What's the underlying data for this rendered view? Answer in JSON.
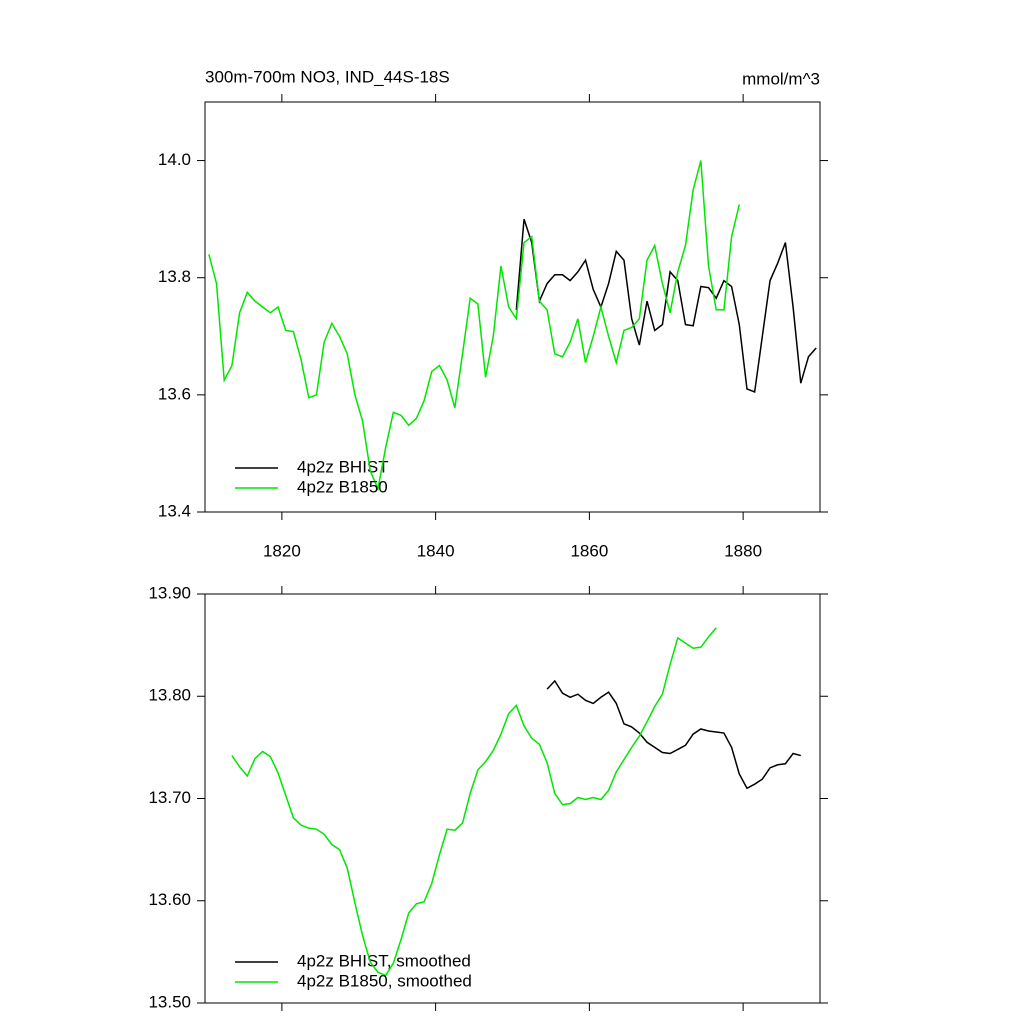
{
  "chart_data": [
    {
      "type": "line",
      "title": "300m-700m NO3, IND_44S-18S",
      "unit_label": "mmol/m^3",
      "x": [
        1810.5,
        1811.5,
        1812.5,
        1813.5,
        1814.5,
        1815.5,
        1816.5,
        1817.5,
        1818.5,
        1819.5,
        1820.5,
        1821.5,
        1822.5,
        1823.5,
        1824.5,
        1825.5,
        1826.5,
        1827.5,
        1828.5,
        1829.5,
        1830.5,
        1831.5,
        1832.5,
        1833.5,
        1834.5,
        1835.5,
        1836.5,
        1837.5,
        1838.5,
        1839.5,
        1840.5,
        1841.5,
        1842.5,
        1843.5,
        1844.5,
        1845.5,
        1846.5,
        1847.5,
        1848.5,
        1849.5,
        1850.5,
        1851.5,
        1852.5,
        1853.5,
        1854.5,
        1855.5,
        1856.5,
        1857.5,
        1858.5,
        1859.5,
        1860.5,
        1861.5,
        1862.5,
        1863.5,
        1864.5,
        1865.5,
        1866.5,
        1867.5,
        1868.5,
        1869.5,
        1870.5,
        1871.5,
        1872.5,
        1873.5,
        1874.5,
        1875.5,
        1876.5,
        1877.5,
        1878.5,
        1879.5,
        1880.5,
        1881.5,
        1882.5,
        1883.5,
        1884.5,
        1885.5,
        1886.5,
        1887.5,
        1888.5,
        1889.5
      ],
      "series": [
        {
          "name": "4p2z BHIST",
          "color": "#000000",
          "values": [
            null,
            null,
            null,
            null,
            null,
            null,
            null,
            null,
            null,
            null,
            null,
            null,
            null,
            null,
            null,
            null,
            null,
            null,
            null,
            null,
            null,
            null,
            null,
            null,
            null,
            null,
            null,
            null,
            null,
            null,
            null,
            null,
            null,
            null,
            null,
            null,
            null,
            null,
            null,
            null,
            13.745,
            13.9,
            13.86,
            13.76,
            13.79,
            13.805,
            13.805,
            13.795,
            13.81,
            13.83,
            13.78,
            13.75,
            13.79,
            13.845,
            13.83,
            13.73,
            13.685,
            13.76,
            13.71,
            13.72,
            13.81,
            13.795,
            13.72,
            13.718,
            13.785,
            13.783,
            13.765,
            13.795,
            13.785,
            13.72,
            13.61,
            13.605,
            13.7,
            13.795,
            13.825,
            13.86,
            13.75,
            13.62,
            13.665,
            13.68
          ]
        },
        {
          "name": "4p2z B1850",
          "color": "#00e600",
          "values": [
            13.84,
            13.79,
            13.625,
            13.65,
            13.74,
            13.775,
            13.76,
            13.75,
            13.74,
            13.75,
            13.71,
            13.708,
            13.66,
            13.595,
            13.6,
            13.69,
            13.722,
            13.7,
            13.67,
            13.6,
            13.555,
            13.47,
            13.44,
            13.51,
            13.57,
            13.565,
            13.548,
            13.56,
            13.59,
            13.64,
            13.65,
            13.625,
            13.578,
            13.67,
            13.765,
            13.755,
            13.63,
            13.7,
            13.82,
            13.75,
            13.73,
            13.86,
            13.87,
            13.76,
            13.745,
            13.67,
            13.665,
            13.69,
            13.73,
            13.655,
            13.7,
            13.75,
            13.7,
            13.655,
            13.71,
            13.715,
            13.73,
            13.83,
            13.855,
            13.79,
            13.74,
            13.81,
            13.855,
            13.95,
            14.0,
            13.82,
            13.745,
            13.745,
            13.87,
            13.925,
            null,
            null,
            null,
            null,
            null,
            null,
            null,
            null,
            null,
            null
          ]
        }
      ],
      "xlim": [
        1810,
        1890
      ],
      "xticks": [
        1820,
        1840,
        1860,
        1880
      ],
      "ylim": [
        13.4,
        14.1
      ],
      "yticks": [
        13.4,
        13.6,
        13.8,
        {
          "value": 14.0,
          "label": "14.0"
        }
      ]
    },
    {
      "type": "line",
      "x": [
        1813.5,
        1814.5,
        1815.5,
        1816.5,
        1817.5,
        1818.5,
        1819.5,
        1820.5,
        1821.5,
        1822.5,
        1823.5,
        1824.5,
        1825.5,
        1826.5,
        1827.5,
        1828.5,
        1829.5,
        1830.5,
        1831.5,
        1832.5,
        1833.5,
        1834.5,
        1835.5,
        1836.5,
        1837.5,
        1838.5,
        1839.5,
        1840.5,
        1841.5,
        1842.5,
        1843.5,
        1844.5,
        1845.5,
        1846.5,
        1847.5,
        1848.5,
        1849.5,
        1850.5,
        1851.5,
        1852.5,
        1853.5,
        1854.5,
        1855.5,
        1856.5,
        1857.5,
        1858.5,
        1859.5,
        1860.5,
        1861.5,
        1862.5,
        1863.5,
        1864.5,
        1865.5,
        1866.5,
        1867.5,
        1868.5,
        1869.5,
        1870.5,
        1871.5,
        1872.5,
        1873.5,
        1874.5,
        1875.5,
        1876.5,
        1877.5,
        1878.5,
        1879.5,
        1880.5,
        1881.5,
        1882.5,
        1883.5,
        1884.5,
        1885.5,
        1886.5,
        1887.5
      ],
      "series": [
        {
          "name": "4p2z BHIST, smoothed",
          "color": "#000000",
          "values": [
            null,
            null,
            null,
            null,
            null,
            null,
            null,
            null,
            null,
            null,
            null,
            null,
            null,
            null,
            null,
            null,
            null,
            null,
            null,
            null,
            null,
            null,
            null,
            null,
            null,
            null,
            null,
            null,
            null,
            null,
            null,
            null,
            null,
            null,
            null,
            null,
            null,
            null,
            null,
            null,
            null,
            13.807,
            13.815,
            13.803,
            13.799,
            13.802,
            13.796,
            13.793,
            13.799,
            13.804,
            13.793,
            13.773,
            13.77,
            13.764,
            13.755,
            13.75,
            13.745,
            13.744,
            13.748,
            13.752,
            13.763,
            13.768,
            13.766,
            13.765,
            13.764,
            13.75,
            13.724,
            13.71,
            13.714,
            13.719,
            13.73,
            13.733,
            13.734,
            13.744,
            13.742
          ]
        },
        {
          "name": "4p2z B1850, smoothed",
          "color": "#00e600",
          "values": [
            13.742,
            13.731,
            13.722,
            13.739,
            13.746,
            13.741,
            13.725,
            13.703,
            13.681,
            13.674,
            13.671,
            13.67,
            13.665,
            13.655,
            13.65,
            13.632,
            13.598,
            13.566,
            13.54,
            13.53,
            13.527,
            13.539,
            13.562,
            13.588,
            13.597,
            13.599,
            13.617,
            13.645,
            13.67,
            13.669,
            13.676,
            13.705,
            13.728,
            13.736,
            13.747,
            13.763,
            13.783,
            13.791,
            13.771,
            13.759,
            13.753,
            13.735,
            13.705,
            13.694,
            13.695,
            13.701,
            13.699,
            13.701,
            13.699,
            13.708,
            13.726,
            13.738,
            13.75,
            13.761,
            13.775,
            13.79,
            13.802,
            13.831,
            13.857,
            13.852,
            13.847,
            13.848,
            13.858,
            13.867,
            null,
            null,
            null,
            null,
            null,
            null,
            null,
            null,
            null,
            null,
            null
          ]
        }
      ],
      "xlim": [
        1810,
        1890
      ],
      "xticks": [
        1820,
        1840,
        1860,
        1880
      ],
      "xtick_labels": false,
      "ylim": [
        13.5,
        13.9
      ],
      "yticks": [
        {
          "value": 13.5,
          "label": "13.50"
        },
        {
          "value": 13.6,
          "label": "13.60"
        },
        {
          "value": 13.7,
          "label": "13.70"
        },
        {
          "value": 13.8,
          "label": "13.80"
        },
        {
          "value": 13.9,
          "label": "13.90"
        }
      ]
    }
  ]
}
